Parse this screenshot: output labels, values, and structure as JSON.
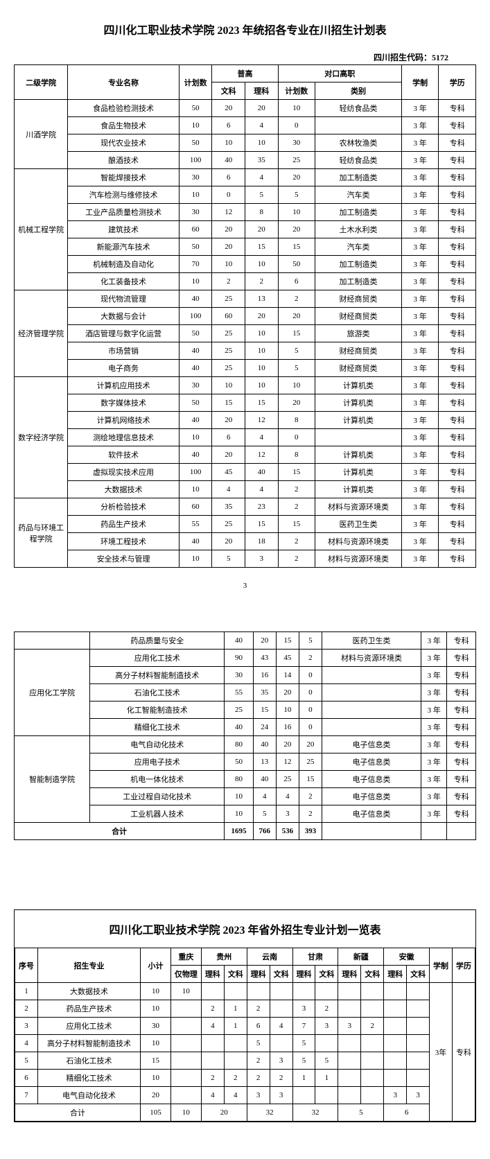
{
  "title1": "四川化工职业技术学院 2023 年统招各专业在川招生计划表",
  "code_label": "四川招生代码：5172",
  "h": {
    "college": "二级学院",
    "major": "专业名称",
    "plan": "计划数",
    "pg": "普高",
    "wk": "文科",
    "lk": "理科",
    "dk": "对口高职",
    "pnum": "计划数",
    "cat": "类别",
    "years": "学制",
    "degree": "学历"
  },
  "groups": [
    {
      "college": "川酒学院",
      "rows": [
        {
          "m": "食品检验检测技术",
          "t": "50",
          "w": "20",
          "l": "20",
          "p": "10",
          "c": "轻纺食品类",
          "y": "3 年",
          "d": "专科"
        },
        {
          "m": "食品生物技术",
          "t": "10",
          "w": "6",
          "l": "4",
          "p": "0",
          "c": "",
          "y": "3 年",
          "d": "专科"
        },
        {
          "m": "现代农业技术",
          "t": "50",
          "w": "10",
          "l": "10",
          "p": "30",
          "c": "农林牧渔类",
          "y": "3 年",
          "d": "专科"
        },
        {
          "m": "酿酒技术",
          "t": "100",
          "w": "40",
          "l": "35",
          "p": "25",
          "c": "轻纺食品类",
          "y": "3 年",
          "d": "专科"
        }
      ]
    },
    {
      "college": "机械工程学院",
      "rows": [
        {
          "m": "智能焊接技术",
          "t": "30",
          "w": "6",
          "l": "4",
          "p": "20",
          "c": "加工制造类",
          "y": "3 年",
          "d": "专科"
        },
        {
          "m": "汽车检测与维修技术",
          "t": "10",
          "w": "0",
          "l": "5",
          "p": "5",
          "c": "汽车类",
          "y": "3 年",
          "d": "专科"
        },
        {
          "m": "工业产品质量检测技术",
          "t": "30",
          "w": "12",
          "l": "8",
          "p": "10",
          "c": "加工制造类",
          "y": "3 年",
          "d": "专科"
        },
        {
          "m": "建筑技术",
          "t": "60",
          "w": "20",
          "l": "20",
          "p": "20",
          "c": "土木水利类",
          "y": "3 年",
          "d": "专科"
        },
        {
          "m": "新能源汽车技术",
          "t": "50",
          "w": "20",
          "l": "15",
          "p": "15",
          "c": "汽车类",
          "y": "3 年",
          "d": "专科"
        },
        {
          "m": "机械制造及自动化",
          "t": "70",
          "w": "10",
          "l": "10",
          "p": "50",
          "c": "加工制造类",
          "y": "3 年",
          "d": "专科"
        },
        {
          "m": "化工装备技术",
          "t": "10",
          "w": "2",
          "l": "2",
          "p": "6",
          "c": "加工制造类",
          "y": "3 年",
          "d": "专科"
        }
      ]
    },
    {
      "college": "经济管理学院",
      "rows": [
        {
          "m": "现代物流管理",
          "t": "40",
          "w": "25",
          "l": "13",
          "p": "2",
          "c": "财经商贸类",
          "y": "3 年",
          "d": "专科"
        },
        {
          "m": "大数据与会计",
          "t": "100",
          "w": "60",
          "l": "20",
          "p": "20",
          "c": "财经商贸类",
          "y": "3 年",
          "d": "专科"
        },
        {
          "m": "酒店管理与数字化运营",
          "t": "50",
          "w": "25",
          "l": "10",
          "p": "15",
          "c": "旅游类",
          "y": "3 年",
          "d": "专科"
        },
        {
          "m": "市场营销",
          "t": "40",
          "w": "25",
          "l": "10",
          "p": "5",
          "c": "财经商贸类",
          "y": "3 年",
          "d": "专科"
        },
        {
          "m": "电子商务",
          "t": "40",
          "w": "25",
          "l": "10",
          "p": "5",
          "c": "财经商贸类",
          "y": "3 年",
          "d": "专科"
        }
      ]
    },
    {
      "college": "数字经济学院",
      "rows": [
        {
          "m": "计算机应用技术",
          "t": "30",
          "w": "10",
          "l": "10",
          "p": "10",
          "c": "计算机类",
          "y": "3 年",
          "d": "专科"
        },
        {
          "m": "数字媒体技术",
          "t": "50",
          "w": "15",
          "l": "15",
          "p": "20",
          "c": "计算机类",
          "y": "3 年",
          "d": "专科"
        },
        {
          "m": "计算机网络技术",
          "t": "40",
          "w": "20",
          "l": "12",
          "p": "8",
          "c": "计算机类",
          "y": "3 年",
          "d": "专科"
        },
        {
          "m": "测绘地理信息技术",
          "t": "10",
          "w": "6",
          "l": "4",
          "p": "0",
          "c": "",
          "y": "3 年",
          "d": "专科"
        },
        {
          "m": "软件技术",
          "t": "40",
          "w": "20",
          "l": "12",
          "p": "8",
          "c": "计算机类",
          "y": "3 年",
          "d": "专科"
        },
        {
          "m": "虚拟现实技术应用",
          "t": "100",
          "w": "45",
          "l": "40",
          "p": "15",
          "c": "计算机类",
          "y": "3 年",
          "d": "专科"
        },
        {
          "m": "大数据技术",
          "t": "10",
          "w": "4",
          "l": "4",
          "p": "2",
          "c": "计算机类",
          "y": "3 年",
          "d": "专科"
        }
      ]
    },
    {
      "college": "药品与环境工程学院",
      "rows": [
        {
          "m": "分析检验技术",
          "t": "60",
          "w": "35",
          "l": "23",
          "p": "2",
          "c": "材料与资源环境类",
          "y": "3 年",
          "d": "专科"
        },
        {
          "m": "药品生产技术",
          "t": "55",
          "w": "25",
          "l": "15",
          "p": "15",
          "c": "医药卫生类",
          "y": "3 年",
          "d": "专科"
        },
        {
          "m": "环境工程技术",
          "t": "40",
          "w": "20",
          "l": "18",
          "p": "2",
          "c": "材料与资源环境类",
          "y": "3 年",
          "d": "专科"
        },
        {
          "m": "安全技术与管理",
          "t": "10",
          "w": "5",
          "l": "3",
          "p": "2",
          "c": "材料与资源环境类",
          "y": "3 年",
          "d": "专科"
        }
      ]
    }
  ],
  "page_num": "3",
  "groups2": [
    {
      "college": "",
      "rows": [
        {
          "m": "药品质量与安全",
          "t": "40",
          "w": "20",
          "l": "15",
          "p": "5",
          "c": "医药卫生类",
          "y": "3 年",
          "d": "专科"
        }
      ]
    },
    {
      "college": "应用化工学院",
      "rows": [
        {
          "m": "应用化工技术",
          "t": "90",
          "w": "43",
          "l": "45",
          "p": "2",
          "c": "材料与资源环境类",
          "y": "3 年",
          "d": "专科"
        },
        {
          "m": "高分子材料智能制造技术",
          "t": "30",
          "w": "16",
          "l": "14",
          "p": "0",
          "c": "",
          "y": "3 年",
          "d": "专科"
        },
        {
          "m": "石油化工技术",
          "t": "55",
          "w": "35",
          "l": "20",
          "p": "0",
          "c": "",
          "y": "3 年",
          "d": "专科"
        },
        {
          "m": "化工智能制造技术",
          "t": "25",
          "w": "15",
          "l": "10",
          "p": "0",
          "c": "",
          "y": "3 年",
          "d": "专科"
        },
        {
          "m": "精细化工技术",
          "t": "40",
          "w": "24",
          "l": "16",
          "p": "0",
          "c": "",
          "y": "3 年",
          "d": "专科"
        }
      ]
    },
    {
      "college": "智能制造学院",
      "rows": [
        {
          "m": "电气自动化技术",
          "t": "80",
          "w": "40",
          "l": "20",
          "p": "20",
          "c": "电子信息类",
          "y": "3 年",
          "d": "专科"
        },
        {
          "m": "应用电子技术",
          "t": "50",
          "w": "13",
          "l": "12",
          "p": "25",
          "c": "电子信息类",
          "y": "3 年",
          "d": "专科"
        },
        {
          "m": "机电一体化技术",
          "t": "80",
          "w": "40",
          "l": "25",
          "p": "15",
          "c": "电子信息类",
          "y": "3 年",
          "d": "专科"
        },
        {
          "m": "工业过程自动化技术",
          "t": "10",
          "w": "4",
          "l": "4",
          "p": "2",
          "c": "电子信息类",
          "y": "3 年",
          "d": "专科"
        },
        {
          "m": "工业机器人技术",
          "t": "10",
          "w": "5",
          "l": "3",
          "p": "2",
          "c": "电子信息类",
          "y": "3 年",
          "d": "专科"
        }
      ]
    }
  ],
  "total": {
    "label": "合计",
    "t": "1695",
    "w": "766",
    "l": "536",
    "p": "393"
  },
  "title2": "四川化工职业技术学院 2023 年省外招生专业计划一览表",
  "h2": {
    "seq": "序号",
    "major": "招生专业",
    "sub": "小计",
    "cq": "重庆",
    "cqs": "仅物理",
    "gz": "贵州",
    "yn": "云南",
    "gs": "甘肃",
    "xj": "新疆",
    "ah": "安徽",
    "lk": "理科",
    "wk": "文科",
    "years": "学制",
    "degree": "学历"
  },
  "t2rows": [
    {
      "n": "1",
      "m": "大数据技术",
      "s": "10",
      "cq": "10",
      "gzl": "",
      "gzw": "",
      "ynl": "",
      "ynw": "",
      "gsl": "",
      "gsw": "",
      "xjl": "",
      "xjw": "",
      "ahl": "",
      "ahw": ""
    },
    {
      "n": "2",
      "m": "药品生产技术",
      "s": "10",
      "cq": "",
      "gzl": "2",
      "gzw": "1",
      "ynl": "2",
      "ynw": "",
      "gsl": "3",
      "gsw": "2",
      "xjl": "",
      "xjw": "",
      "ahl": "",
      "ahw": ""
    },
    {
      "n": "3",
      "m": "应用化工技术",
      "s": "30",
      "cq": "",
      "gzl": "4",
      "gzw": "1",
      "ynl": "6",
      "ynw": "4",
      "gsl": "7",
      "gsw": "3",
      "xjl": "3",
      "xjw": "2",
      "ahl": "",
      "ahw": ""
    },
    {
      "n": "4",
      "m": "高分子材料智能制造技术",
      "s": "10",
      "cq": "",
      "gzl": "",
      "gzw": "",
      "ynl": "5",
      "ynw": "",
      "gsl": "5",
      "gsw": "",
      "xjl": "",
      "xjw": "",
      "ahl": "",
      "ahw": ""
    },
    {
      "n": "5",
      "m": "石油化工技术",
      "s": "15",
      "cq": "",
      "gzl": "",
      "gzw": "",
      "ynl": "2",
      "ynw": "3",
      "gsl": "5",
      "gsw": "5",
      "xjl": "",
      "xjw": "",
      "ahl": "",
      "ahw": ""
    },
    {
      "n": "6",
      "m": "精细化工技术",
      "s": "10",
      "cq": "",
      "gzl": "2",
      "gzw": "2",
      "ynl": "2",
      "ynw": "2",
      "gsl": "1",
      "gsw": "1",
      "xjl": "",
      "xjw": "",
      "ahl": "",
      "ahw": ""
    },
    {
      "n": "7",
      "m": "电气自动化技术",
      "s": "20",
      "cq": "",
      "gzl": "4",
      "gzw": "4",
      "ynl": "3",
      "ynw": "3",
      "gsl": "",
      "gsw": "",
      "xjl": "",
      "xjw": "",
      "ahl": "3",
      "ahw": "3"
    }
  ],
  "t2total": {
    "label": "合计",
    "s": "105",
    "cq": "10",
    "gz": "20",
    "yn": "32",
    "gs": "32",
    "xj": "5",
    "ah": "6"
  },
  "t2years": "3年",
  "t2degree": "专科"
}
